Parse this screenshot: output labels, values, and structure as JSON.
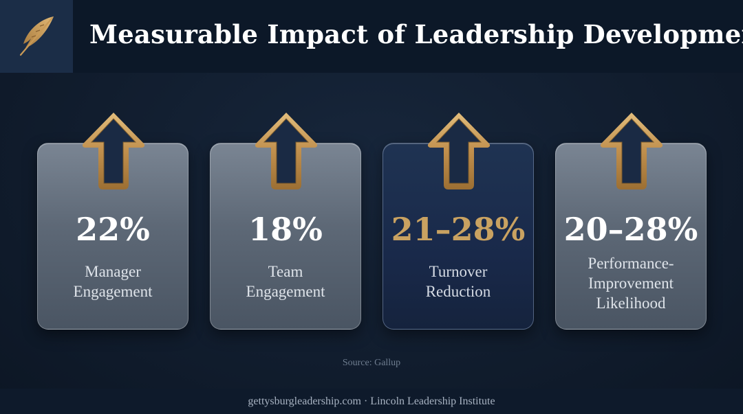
{
  "header": {
    "title": "Measurable Impact of Leadership Development",
    "logo_icon": "feather-quill-icon"
  },
  "cards": [
    {
      "value": "22%",
      "label_lines": [
        "Manager",
        "Engagement"
      ],
      "icon": "up-arrow-icon",
      "highlight": false
    },
    {
      "value": "18%",
      "label_lines": [
        "Team",
        "Engagement"
      ],
      "icon": "up-arrow-icon",
      "highlight": false
    },
    {
      "value": "21–28%",
      "label_lines": [
        "Turnover",
        "Reduction"
      ],
      "icon": "up-arrow-icon",
      "highlight": true
    },
    {
      "value": "20–28%",
      "label_lines": [
        "Performance-",
        "Improvement",
        "Likelihood"
      ],
      "icon": "up-arrow-icon",
      "highlight": false
    }
  ],
  "source": "Source: Gallup",
  "footer": "gettysburgleadership.com · Lincoln Leadership Institute",
  "colors": {
    "background": "#111d2e",
    "accent_gold": "#c9a261",
    "highlight_card": "#1b2c4a",
    "card_glass": "#5d6876"
  }
}
